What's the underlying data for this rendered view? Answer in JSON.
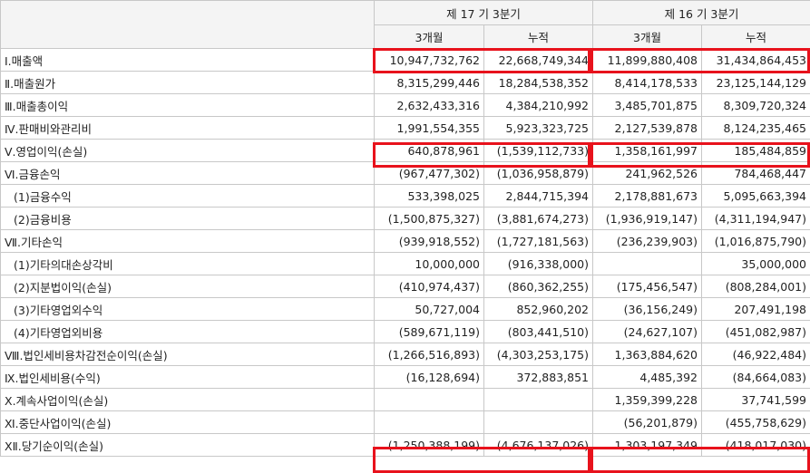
{
  "header": {
    "period_current": "제 17 기 3분기",
    "period_prior": "제 16 기 3분기",
    "subheaders": [
      "3개월",
      "누적",
      "3개월",
      "누적"
    ]
  },
  "rows": [
    {
      "label": "Ⅰ.매출액",
      "values": [
        "10,947,732,762",
        "22,668,749,344",
        "11,899,880,408",
        "31,434,864,453"
      ],
      "highlighted": true
    },
    {
      "label": "Ⅱ.매출원가",
      "values": [
        "8,315,299,446",
        "18,284,538,352",
        "8,414,178,533",
        "23,125,144,129"
      ]
    },
    {
      "label": "Ⅲ.매출총이익",
      "values": [
        "2,632,433,316",
        "4,384,210,992",
        "3,485,701,875",
        "8,309,720,324"
      ]
    },
    {
      "label": "Ⅳ.판매비와관리비",
      "values": [
        "1,991,554,355",
        "5,923,323,725",
        "2,127,539,878",
        "8,124,235,465"
      ]
    },
    {
      "label": "Ⅴ.영업이익(손실)",
      "values": [
        "640,878,961",
        "(1,539,112,733)",
        "1,358,161,997",
        "185,484,859"
      ],
      "highlighted": true
    },
    {
      "label": "Ⅵ.금융손익",
      "values": [
        "(967,477,302)",
        "(1,036,958,879)",
        "241,962,526",
        "784,468,447"
      ]
    },
    {
      "label": "(1)금융수익",
      "indent": true,
      "values": [
        "533,398,025",
        "2,844,715,394",
        "2,178,881,673",
        "5,095,663,394"
      ]
    },
    {
      "label": "(2)금융비용",
      "indent": true,
      "values": [
        "(1,500,875,327)",
        "(3,881,674,273)",
        "(1,936,919,147)",
        "(4,311,194,947)"
      ]
    },
    {
      "label": "Ⅶ.기타손익",
      "values": [
        "(939,918,552)",
        "(1,727,181,563)",
        "(236,239,903)",
        "(1,016,875,790)"
      ]
    },
    {
      "label": "(1)기타의대손상각비",
      "indent": true,
      "values": [
        "10,000,000",
        "(916,338,000)",
        "",
        "35,000,000"
      ]
    },
    {
      "label": "(2)지분법이익(손실)",
      "indent": true,
      "values": [
        "(410,974,437)",
        "(860,362,255)",
        "(175,456,547)",
        "(808,284,001)"
      ]
    },
    {
      "label": "(3)기타영업외수익",
      "indent": true,
      "values": [
        "50,727,004",
        "852,960,202",
        "(36,156,249)",
        "207,491,198"
      ]
    },
    {
      "label": "(4)기타영업외비용",
      "indent": true,
      "values": [
        "(589,671,119)",
        "(803,441,510)",
        "(24,627,107)",
        "(451,082,987)"
      ]
    },
    {
      "label": "Ⅷ.법인세비용차감전순이익(손실)",
      "values": [
        "(1,266,516,893)",
        "(4,303,253,175)",
        "1,363,884,620",
        "(46,922,484)"
      ]
    },
    {
      "label": "Ⅸ.법인세비용(수익)",
      "values": [
        "(16,128,694)",
        "372,883,851",
        "4,485,392",
        "(84,664,083)"
      ]
    },
    {
      "label": "Ⅹ.계속사업이익(손실)",
      "values": [
        "",
        "",
        "1,359,399,228",
        "37,741,599"
      ]
    },
    {
      "label": "Ⅺ.중단사업이익(손실)",
      "values": [
        "",
        "",
        "(56,201,879)",
        "(455,758,629)"
      ]
    },
    {
      "label": "ⅩⅡ.당기순이익(손실)",
      "values": [
        "(1,250,388,199)",
        "(4,676,137,026)",
        "1,303,197,349",
        "(418,017,030)"
      ],
      "highlighted": true
    }
  ],
  "highlight_color": "#e8121c"
}
